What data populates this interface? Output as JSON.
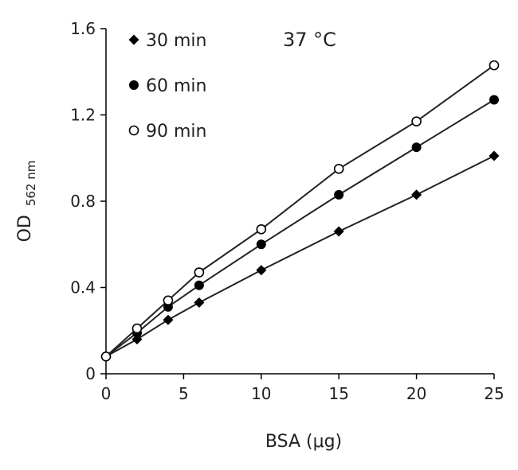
{
  "chart_data": {
    "type": "line",
    "title": "",
    "annotation": "37 °C",
    "xlabel": "BSA (μg)",
    "ylabel_main": "OD",
    "ylabel_sub": "562 nm",
    "xlim": [
      0,
      25
    ],
    "ylim": [
      0,
      1.6
    ],
    "x_ticks": [
      0,
      5,
      10,
      15,
      20,
      25
    ],
    "x_tick_labels": [
      "0",
      "5",
      "10",
      "15",
      "20",
      "25"
    ],
    "y_ticks": [
      0,
      0.4,
      0.8,
      1.2,
      1.6
    ],
    "y_tick_labels": [
      "0",
      "0.4",
      "0.8",
      "1.2",
      "1.6"
    ],
    "grid": false,
    "legend_position": "top-left",
    "x": [
      0,
      2,
      4,
      6,
      10,
      15,
      20,
      25
    ],
    "series": [
      {
        "name": "30 min",
        "marker": "diamond",
        "values": [
          0.08,
          0.16,
          0.25,
          0.33,
          0.48,
          0.66,
          0.83,
          1.01
        ]
      },
      {
        "name": "60 min",
        "marker": "filled-circle",
        "values": [
          0.08,
          0.19,
          0.31,
          0.41,
          0.6,
          0.83,
          1.05,
          1.27
        ]
      },
      {
        "name": "90 min",
        "marker": "open-circle",
        "values": [
          0.08,
          0.21,
          0.34,
          0.47,
          0.67,
          0.95,
          1.17,
          1.43
        ]
      }
    ],
    "colors": {
      "marker": "#000000",
      "line": "#222222"
    }
  }
}
